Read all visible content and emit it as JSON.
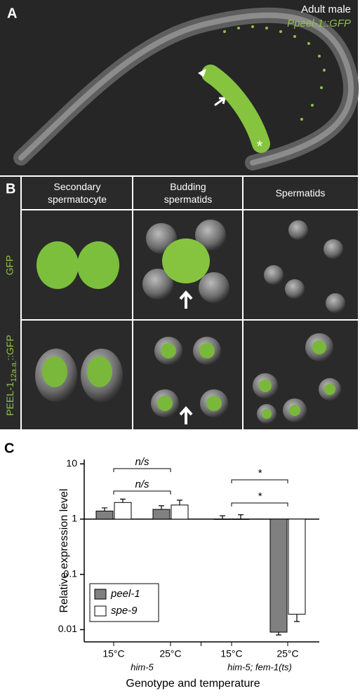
{
  "panel_a": {
    "label": "A",
    "caption_1": "Adult male",
    "caption_2": "Ppeel-1::GFP",
    "asterisk": "*"
  },
  "panel_b": {
    "label": "B",
    "columns": [
      "Secondary\nspermatocyte",
      "Budding\nspermatids",
      "Spermatids"
    ],
    "row_1": "GFP",
    "row_2": {
      "main": "PEEL-1",
      "sub": "12a.a.",
      "suffix": "::GFP"
    }
  },
  "chart_data": {
    "type": "bar",
    "panel_label": "C",
    "log_scale": true,
    "ylabel": "Relative expression level",
    "xlabel": "Genotype and temperature",
    "categories": [
      "15°C",
      "25°C",
      "15°C",
      "25°C"
    ],
    "groups": [
      "him-5",
      "him-5; fem-1(ts)"
    ],
    "ylim": [
      0.006,
      12
    ],
    "yticks": [
      0.01,
      0.1,
      1,
      10
    ],
    "series": [
      {
        "name": "peel-1",
        "color": "#808080",
        "values": [
          1.4,
          1.5,
          1.0,
          0.009
        ],
        "errors": [
          0.2,
          0.25,
          0.15,
          0.001
        ]
      },
      {
        "name": "spe-9",
        "color": "#ffffff",
        "values": [
          2.0,
          1.8,
          1.0,
          0.019
        ],
        "errors": [
          0.3,
          0.4,
          0.2,
          0.005
        ]
      }
    ],
    "annotations": [
      "n/s",
      "n/s",
      "*",
      "*"
    ],
    "legend": "lower left"
  }
}
